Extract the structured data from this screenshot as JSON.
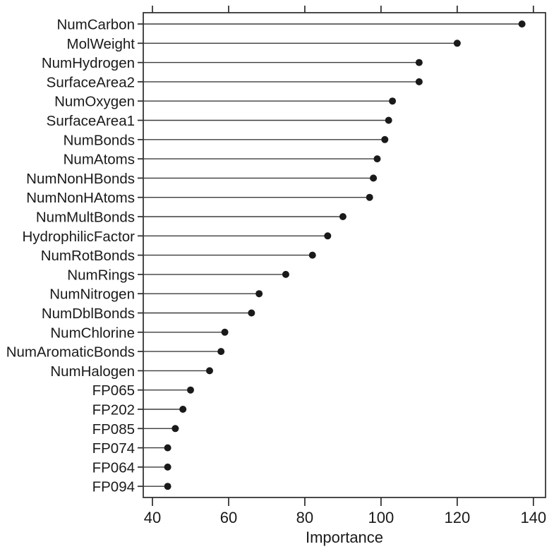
{
  "chart_data": {
    "type": "scatter",
    "subtype": "cleveland-dot-plot",
    "title": "",
    "xlabel": "Importance",
    "ylabel": "",
    "xlim": [
      37.5,
      143.5
    ],
    "x_ticks": [
      40,
      60,
      80,
      100,
      120,
      140
    ],
    "grid": false,
    "legend": "none",
    "axis_style": "closed box, ticks outside on top, bottom and left",
    "marker": {
      "shape": "filled-circle",
      "color": "#1a1a1a",
      "radius_px": 5
    },
    "line_color": "#3d3d3d",
    "box_color": "#2a2a2a",
    "categories": [
      "NumCarbon",
      "MolWeight",
      "NumHydrogen",
      "SurfaceArea2",
      "NumOxygen",
      "SurfaceArea1",
      "NumBonds",
      "NumAtoms",
      "NumNonHBonds",
      "NumNonHAtoms",
      "NumMultBonds",
      "HydrophilicFactor",
      "NumRotBonds",
      "NumRings",
      "NumNitrogen",
      "NumDblBonds",
      "NumChlorine",
      "NumAromaticBonds",
      "NumHalogen",
      "FP065",
      "FP202",
      "FP085",
      "FP074",
      "FP064",
      "FP094"
    ],
    "values": [
      137,
      120,
      110,
      110,
      103,
      102,
      101,
      99,
      98,
      97,
      90,
      86,
      82,
      75,
      68,
      66,
      59,
      58,
      55,
      50,
      48,
      46,
      44,
      44,
      44
    ]
  }
}
